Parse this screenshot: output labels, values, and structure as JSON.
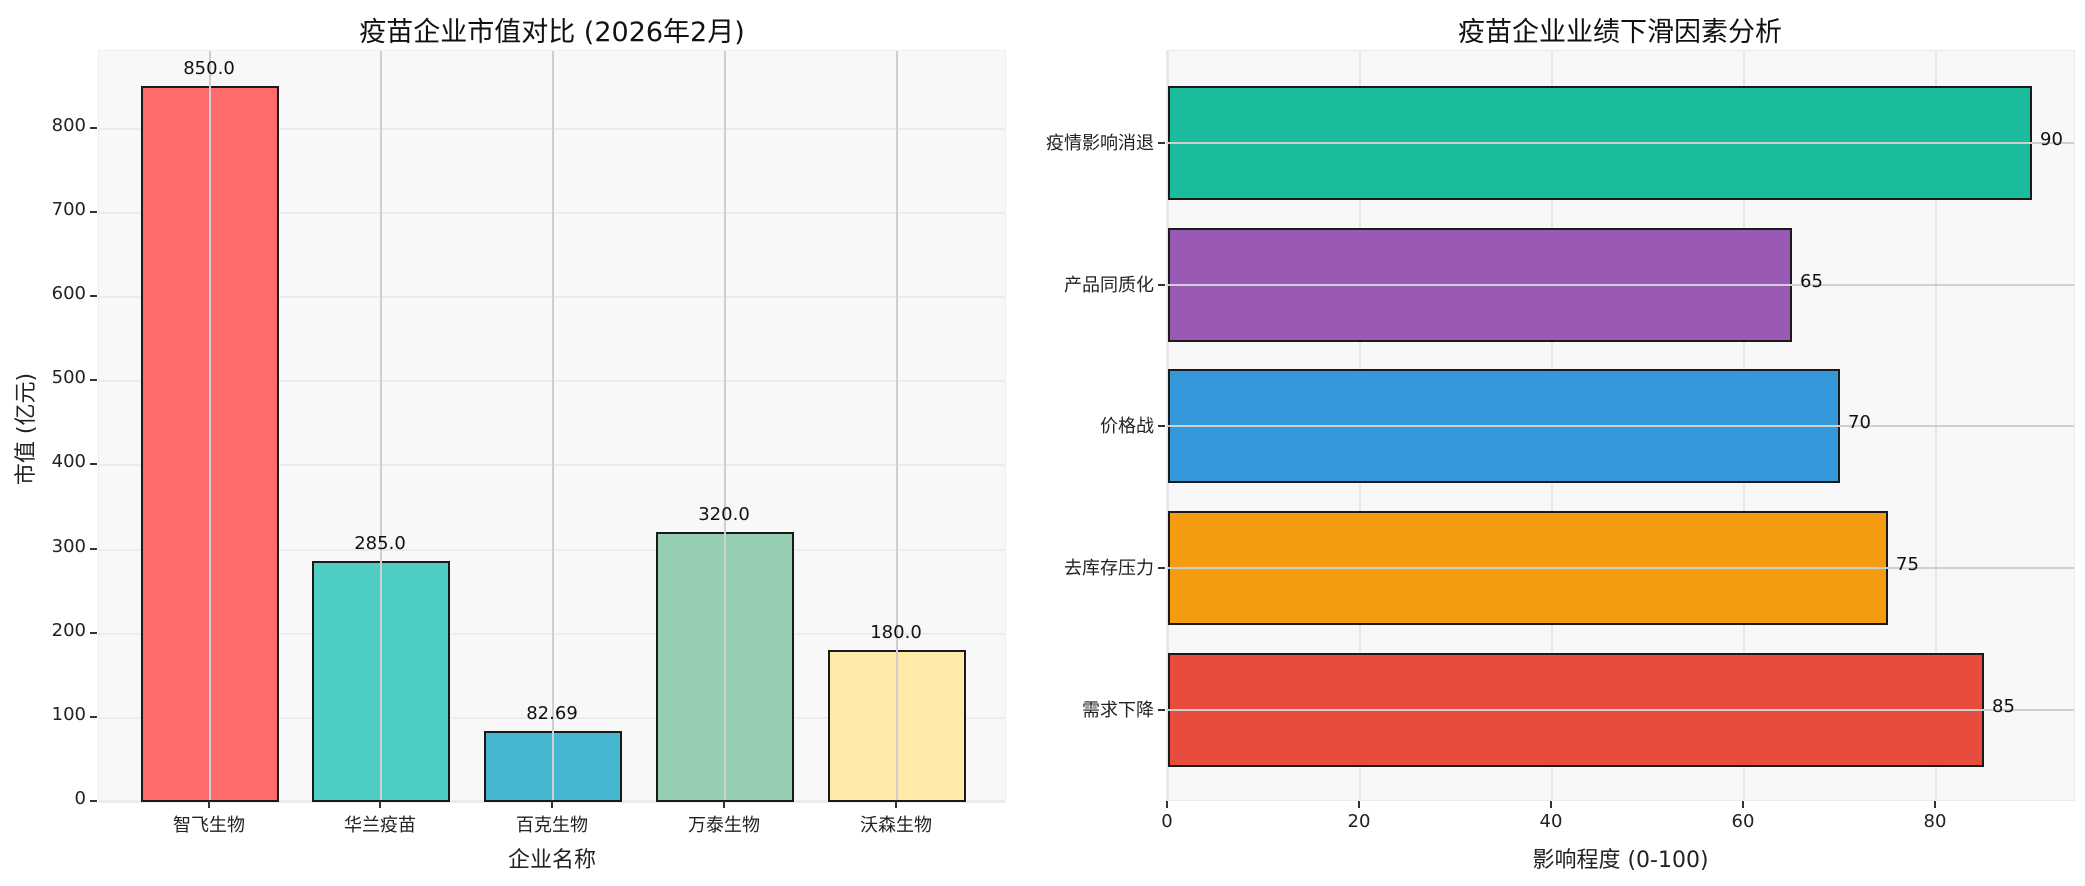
{
  "left_chart": {
    "title": "疫苗企业市值对比 (2026年2月)",
    "xlabel": "企业名称",
    "ylabel": "市值 (亿元)",
    "yticks": [
      "0",
      "100",
      "200",
      "300",
      "400",
      "500",
      "600",
      "700",
      "800"
    ],
    "bars": [
      {
        "label": "智飞生物",
        "value": 850.0,
        "value_label": "850.0",
        "color": "#FF6B6B"
      },
      {
        "label": "华兰疫苗",
        "value": 285.0,
        "value_label": "285.0",
        "color": "#4ECDC4"
      },
      {
        "label": "百克生物",
        "value": 82.69,
        "value_label": "82.69",
        "color": "#45B7D1"
      },
      {
        "label": "万泰生物",
        "value": 320.0,
        "value_label": "320.0",
        "color": "#96CEB4"
      },
      {
        "label": "沃森生物",
        "value": 180.0,
        "value_label": "180.0",
        "color": "#FFEAA7"
      }
    ]
  },
  "right_chart": {
    "title": "疫苗企业业绩下滑因素分析",
    "xlabel": "影响程度 (0-100)",
    "xticks": [
      "0",
      "20",
      "40",
      "60",
      "80"
    ],
    "bars": [
      {
        "label": "疫情影响消退",
        "value": 90,
        "value_label": "90",
        "color": "#1ABC9C"
      },
      {
        "label": "产品同质化",
        "value": 65,
        "value_label": "65",
        "color": "#9B59B6"
      },
      {
        "label": "价格战",
        "value": 70,
        "value_label": "70",
        "color": "#3498DB"
      },
      {
        "label": "去库存压力",
        "value": 75,
        "value_label": "75",
        "color": "#F39C12"
      },
      {
        "label": "需求下降",
        "value": 85,
        "value_label": "85",
        "color": "#E74C3C"
      }
    ]
  },
  "chart_data": [
    {
      "type": "bar",
      "title": "疫苗企业市值对比 (2026年2月)",
      "xlabel": "企业名称",
      "ylabel": "市值 (亿元)",
      "categories": [
        "智飞生物",
        "华兰疫苗",
        "百克生物",
        "万泰生物",
        "沃森生物"
      ],
      "values": [
        850.0,
        285.0,
        82.69,
        320.0,
        180.0
      ],
      "colors": [
        "#FF6B6B",
        "#4ECDC4",
        "#45B7D1",
        "#96CEB4",
        "#FFEAA7"
      ],
      "ylim": [
        0,
        892
      ],
      "yticks": [
        0,
        100,
        200,
        300,
        400,
        500,
        600,
        700,
        800
      ],
      "grid": true,
      "legend": null
    },
    {
      "type": "bar",
      "orientation": "horizontal",
      "title": "疫苗企业业绩下滑因素分析",
      "xlabel": "影响程度 (0-100)",
      "ylabel": "",
      "categories": [
        "疫情影响消退",
        "产品同质化",
        "价格战",
        "去库存压力",
        "需求下降"
      ],
      "values": [
        90,
        65,
        70,
        75,
        85
      ],
      "colors": [
        "#1ABC9C",
        "#9B59B6",
        "#3498DB",
        "#F39C12",
        "#E74C3C"
      ],
      "xlim": [
        0,
        94.5
      ],
      "xticks": [
        0,
        20,
        40,
        60,
        80
      ],
      "grid": true,
      "legend": null
    }
  ]
}
